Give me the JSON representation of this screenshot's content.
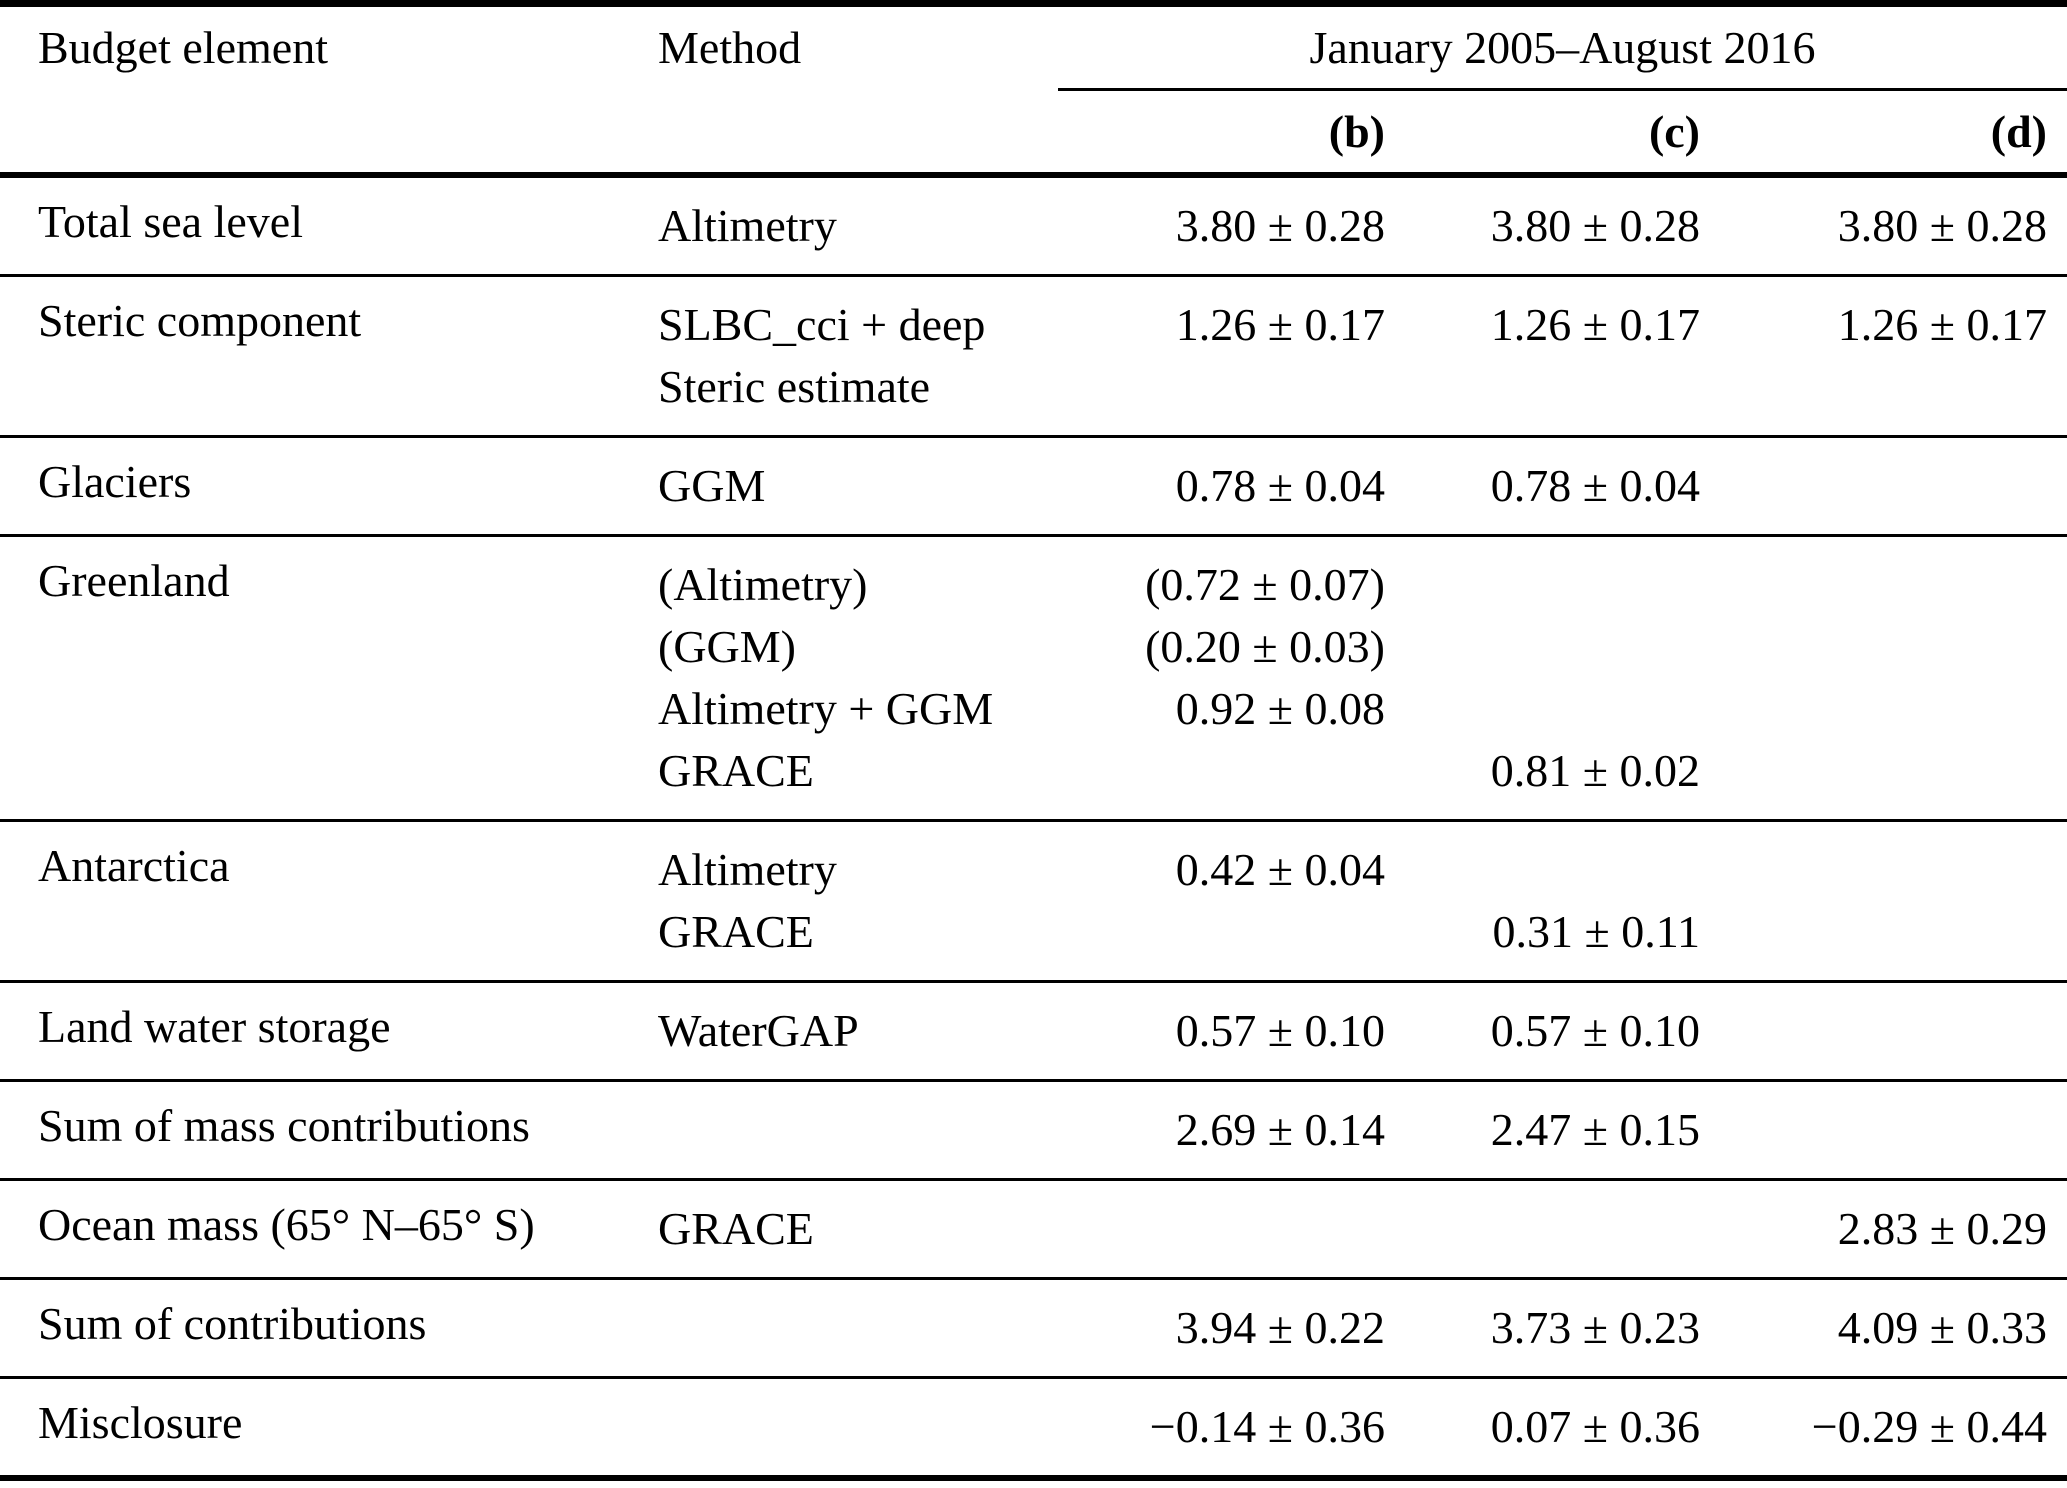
{
  "colors": {
    "text": "#000000",
    "background": "#ffffff",
    "rule": "#000000"
  },
  "table": {
    "header": {
      "col1": "Budget element",
      "col2": "Method",
      "span": "January 2005–August 2016",
      "sub_cols": [
        "(b)",
        "(c)",
        "(d)"
      ]
    },
    "rows": [
      {
        "element": "Total sea level",
        "method": [
          "Altimetry"
        ],
        "b": [
          "3.80 ± 0.28"
        ],
        "c": [
          "3.80 ± 0.28"
        ],
        "d": [
          "3.80 ± 0.28"
        ]
      },
      {
        "element": "Steric component",
        "method": [
          "SLBC_cci + deep",
          "Steric estimate"
        ],
        "b": [
          "1.26 ± 0.17",
          ""
        ],
        "c": [
          "1.26 ± 0.17",
          ""
        ],
        "d": [
          "1.26 ± 0.17",
          ""
        ]
      },
      {
        "element": "Glaciers",
        "method": [
          "GGM"
        ],
        "b": [
          "0.78 ± 0.04"
        ],
        "c": [
          "0.78 ± 0.04"
        ],
        "d": [
          ""
        ]
      },
      {
        "element": "Greenland",
        "method": [
          "(Altimetry)",
          "(GGM)",
          "Altimetry + GGM",
          "GRACE"
        ],
        "b": [
          "(0.72 ± 0.07)",
          "(0.20 ± 0.03)",
          "0.92 ± 0.08",
          ""
        ],
        "c": [
          "",
          "",
          "",
          "0.81 ± 0.02"
        ],
        "d": [
          "",
          "",
          "",
          ""
        ]
      },
      {
        "element": "Antarctica",
        "method": [
          "Altimetry",
          "GRACE"
        ],
        "b": [
          "0.42 ± 0.04",
          ""
        ],
        "c": [
          "",
          "0.31 ± 0.11"
        ],
        "d": [
          "",
          ""
        ]
      },
      {
        "element": "Land water storage",
        "method": [
          "WaterGAP"
        ],
        "b": [
          "0.57 ± 0.10"
        ],
        "c": [
          "0.57 ± 0.10"
        ],
        "d": [
          ""
        ]
      },
      {
        "element": "Sum of mass contributions",
        "method": [
          ""
        ],
        "b": [
          "2.69 ± 0.14"
        ],
        "c": [
          "2.47 ± 0.15"
        ],
        "d": [
          ""
        ]
      },
      {
        "element": "Ocean mass (65° N–65° S)",
        "method": [
          "GRACE"
        ],
        "b": [
          ""
        ],
        "c": [
          ""
        ],
        "d": [
          "2.83 ± 0.29"
        ]
      },
      {
        "element": "Sum of contributions",
        "method": [
          ""
        ],
        "b": [
          "3.94 ± 0.22"
        ],
        "c": [
          "3.73 ± 0.23"
        ],
        "d": [
          "4.09 ± 0.33"
        ]
      },
      {
        "element": "Misclosure",
        "method": [
          ""
        ],
        "b": [
          "−0.14 ± 0.36"
        ],
        "c": [
          "0.07 ± 0.36"
        ],
        "d": [
          "−0.29 ± 0.44"
        ]
      }
    ]
  }
}
